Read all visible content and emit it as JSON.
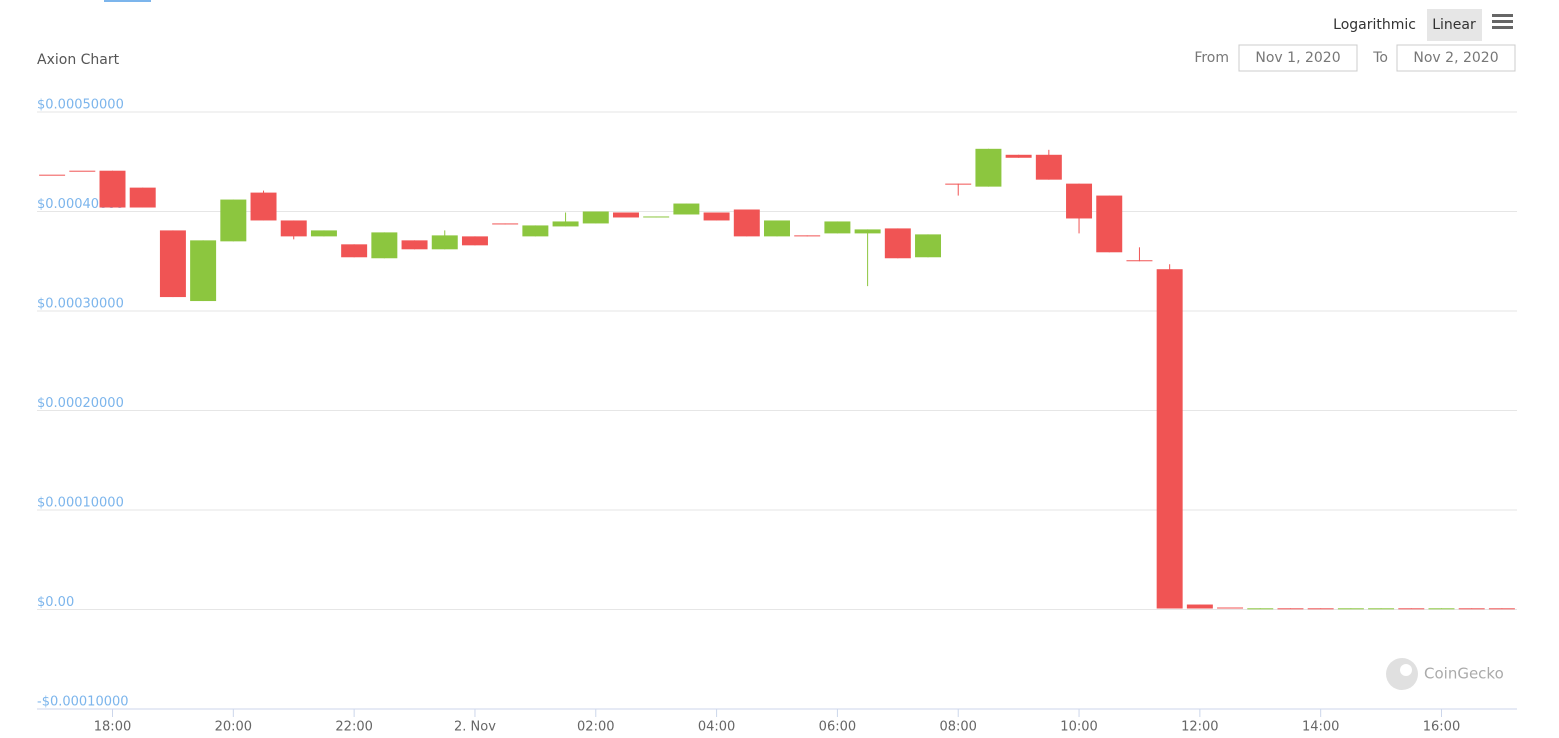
{
  "chart_data": {
    "type": "candlestick",
    "title": "Axion Chart",
    "x": [
      "2020-11-01T17:00",
      "2020-11-01T17:30",
      "2020-11-01T18:00",
      "2020-11-01T18:30",
      "2020-11-01T19:00",
      "2020-11-01T19:30",
      "2020-11-01T20:00",
      "2020-11-01T20:30",
      "2020-11-01T21:00",
      "2020-11-01T21:30",
      "2020-11-01T22:00",
      "2020-11-01T22:30",
      "2020-11-01T23:00",
      "2020-11-01T23:30",
      "2020-11-02T00:00",
      "2020-11-02T00:30",
      "2020-11-02T01:00",
      "2020-11-02T01:30",
      "2020-11-02T02:00",
      "2020-11-02T02:30",
      "2020-11-02T03:00",
      "2020-11-02T03:30",
      "2020-11-02T04:00",
      "2020-11-02T04:30",
      "2020-11-02T05:00",
      "2020-11-02T05:30",
      "2020-11-02T06:00",
      "2020-11-02T06:30",
      "2020-11-02T07:00",
      "2020-11-02T07:30",
      "2020-11-02T08:00",
      "2020-11-02T08:30",
      "2020-11-02T09:00",
      "2020-11-02T09:30",
      "2020-11-02T10:00",
      "2020-11-02T10:30",
      "2020-11-02T11:00",
      "2020-11-02T11:30",
      "2020-11-02T12:00",
      "2020-11-02T12:30",
      "2020-11-02T13:00",
      "2020-11-02T13:30",
      "2020-11-02T14:00",
      "2020-11-02T14:30",
      "2020-11-02T15:00",
      "2020-11-02T15:30",
      "2020-11-02T16:00",
      "2020-11-02T16:30",
      "2020-11-02T17:00"
    ],
    "open": [
      0.000437,
      0.000441,
      0.000441,
      0.000424,
      0.000381,
      0.00031,
      0.00037,
      0.000419,
      0.000391,
      0.000375,
      0.000367,
      0.000353,
      0.000371,
      0.000362,
      0.000375,
      0.000388,
      0.000375,
      0.000385,
      0.000388,
      0.000399,
      0.000394,
      0.000397,
      0.000399,
      0.000402,
      0.000375,
      0.000376,
      0.000378,
      0.000378,
      0.000383,
      0.000354,
      0.000428,
      0.000425,
      0.000457,
      0.000457,
      0.000428,
      0.000416,
      0.000351,
      0.000342,
      5e-06,
      2e-06,
      1e-06,
      1.2e-06,
      1.2e-06,
      1e-06,
      1e-06,
      1.2e-06,
      1e-06,
      1.2e-06,
      1.2e-06
    ],
    "high": [
      0.000437,
      0.000441,
      0.000441,
      0.000424,
      0.000381,
      0.000371,
      0.000412,
      0.000421,
      0.000391,
      0.000381,
      0.000367,
      0.000379,
      0.000371,
      0.000381,
      0.000375,
      0.000388,
      0.000386,
      0.000399,
      0.0004,
      0.000399,
      0.000395,
      0.000408,
      0.000399,
      0.000402,
      0.000391,
      0.000376,
      0.00039,
      0.000382,
      0.000383,
      0.000377,
      0.000428,
      0.000463,
      0.000457,
      0.000462,
      0.000428,
      0.000416,
      0.000364,
      0.000347,
      5e-06,
      2e-06,
      1.2e-06,
      1.2e-06,
      1.2e-06,
      1.2e-06,
      1.2e-06,
      1.2e-06,
      1.2e-06,
      1.2e-06,
      1.2e-06
    ],
    "low": [
      0.000437,
      0.000441,
      0.000404,
      0.000404,
      0.000314,
      0.00031,
      0.00037,
      0.000391,
      0.000372,
      0.000375,
      0.000354,
      0.000353,
      0.000362,
      0.000362,
      0.000366,
      0.000387,
      0.000375,
      0.000385,
      0.000388,
      0.000394,
      0.000394,
      0.000397,
      0.000391,
      0.000375,
      0.000375,
      0.000375,
      0.000378,
      0.000325,
      0.000353,
      0.000354,
      0.000416,
      0.000425,
      0.000454,
      0.000432,
      0.000378,
      0.000359,
      0.00035,
      1e-06,
      1e-06,
      1e-06,
      1e-06,
      1e-06,
      1e-06,
      1e-06,
      1e-06,
      1e-06,
      1e-06,
      1e-06,
      1e-06
    ],
    "close": [
      0.000436,
      0.00044,
      0.000404,
      0.000404,
      0.000314,
      0.000371,
      0.000412,
      0.000391,
      0.000375,
      0.000381,
      0.000354,
      0.000379,
      0.000362,
      0.000376,
      0.000366,
      0.000387,
      0.000386,
      0.00039,
      0.0004,
      0.000394,
      0.000395,
      0.000408,
      0.000391,
      0.000375,
      0.000391,
      0.000375,
      0.00039,
      0.000382,
      0.000353,
      0.000377,
      0.000427,
      0.000463,
      0.000454,
      0.000432,
      0.000393,
      0.000359,
      0.00035,
      1e-06,
      1e-06,
      1e-06,
      1.2e-06,
      1e-06,
      1e-06,
      1.2e-06,
      1.2e-06,
      1e-06,
      1.2e-06,
      1e-06,
      1e-06
    ],
    "up_color": "#8cc63f",
    "down_color": "#f05454",
    "xlim": [
      "2020-11-01T16:45",
      "2020-11-02T17:15"
    ],
    "xticks": [
      {
        "value": "2020-11-01T18:00",
        "label": "18:00"
      },
      {
        "value": "2020-11-01T20:00",
        "label": "20:00"
      },
      {
        "value": "2020-11-01T22:00",
        "label": "22:00"
      },
      {
        "value": "2020-11-02T00:00",
        "label": "2. Nov"
      },
      {
        "value": "2020-11-02T02:00",
        "label": "02:00"
      },
      {
        "value": "2020-11-02T04:00",
        "label": "04:00"
      },
      {
        "value": "2020-11-02T06:00",
        "label": "06:00"
      },
      {
        "value": "2020-11-02T08:00",
        "label": "08:00"
      },
      {
        "value": "2020-11-02T10:00",
        "label": "10:00"
      },
      {
        "value": "2020-11-02T12:00",
        "label": "12:00"
      },
      {
        "value": "2020-11-02T14:00",
        "label": "14:00"
      },
      {
        "value": "2020-11-02T16:00",
        "label": "16:00"
      }
    ],
    "ylim": [
      -0.0001,
      0.0005
    ],
    "yticks": [
      {
        "value": -0.0001,
        "label": "-$0.00010000"
      },
      {
        "value": 0,
        "label": "$0.00"
      },
      {
        "value": 0.0001,
        "label": "$0.00010000"
      },
      {
        "value": 0.0002,
        "label": "$0.00020000"
      },
      {
        "value": 0.0003,
        "label": "$0.00030000"
      },
      {
        "value": 0.0004,
        "label": "$0.00040000"
      },
      {
        "value": 0.0005,
        "label": "$0.00050000"
      }
    ],
    "grid": true,
    "log_scale": false
  },
  "scale_options": [
    "Logarithmic",
    "Linear"
  ],
  "active_scale": 1,
  "range_selector": {
    "from_label": "From",
    "from": "Nov 1, 2020",
    "to_label": "To",
    "to": "Nov 2, 2020"
  },
  "watermark": "CoinGecko"
}
